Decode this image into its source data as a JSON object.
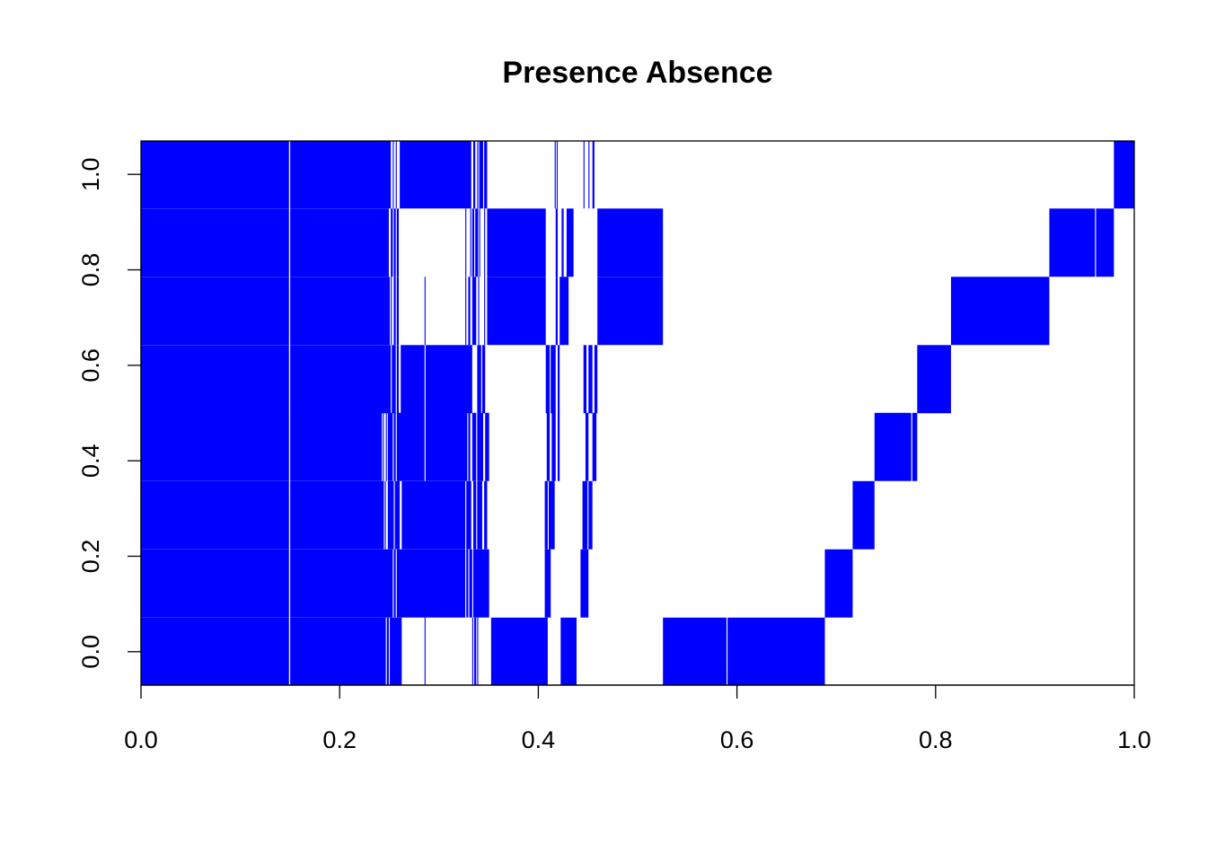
{
  "chart_data": {
    "type": "heatmap",
    "title": "Presence Absence",
    "xlabel": "",
    "ylabel": "",
    "color": "#0000ff",
    "background": "#ffffff",
    "xlim": [
      0,
      1
    ],
    "ylim": [
      -0.07,
      1.07
    ],
    "x_ticks": [
      "0.0",
      "0.2",
      "0.4",
      "0.6",
      "0.8",
      "1.0"
    ],
    "y_ticks": [
      "0.0",
      "0.2",
      "0.4",
      "0.6",
      "0.8",
      "1.0"
    ],
    "rows": [
      {
        "y": 0.0,
        "segments": [
          [
            0.0,
            0.149
          ],
          [
            0.1502,
            0.2465
          ],
          [
            0.2475,
            0.2495
          ],
          [
            0.2505,
            0.2625
          ],
          [
            0.2855,
            0.2865
          ],
          [
            0.3335,
            0.3345
          ],
          [
            0.3355,
            0.3375
          ],
          [
            0.3385,
            0.3395
          ],
          [
            0.3525,
            0.4095
          ],
          [
            0.4225,
            0.4385
          ],
          [
            0.5255,
            0.5895
          ],
          [
            0.5905,
            0.6885
          ]
        ]
      },
      {
        "y": 0.143,
        "segments": [
          [
            0.0,
            0.149
          ],
          [
            0.1502,
            0.2535
          ],
          [
            0.2545,
            0.2565
          ],
          [
            0.2575,
            0.3265
          ],
          [
            0.3275,
            0.3295
          ],
          [
            0.3305,
            0.3335
          ],
          [
            0.3345,
            0.3505
          ],
          [
            0.4065,
            0.4125
          ],
          [
            0.4425,
            0.4505
          ],
          [
            0.6885,
            0.7165
          ]
        ]
      },
      {
        "y": 0.286,
        "segments": [
          [
            0.0,
            0.149
          ],
          [
            0.1502,
            0.2445
          ],
          [
            0.2455,
            0.2465
          ],
          [
            0.2485,
            0.2545
          ],
          [
            0.2555,
            0.2605
          ],
          [
            0.2625,
            0.3265
          ],
          [
            0.3275,
            0.3325
          ],
          [
            0.3345,
            0.3375
          ],
          [
            0.3385,
            0.3435
          ],
          [
            0.3455,
            0.3485
          ],
          [
            0.4065,
            0.4095
          ],
          [
            0.4105,
            0.4165
          ],
          [
            0.4445,
            0.4495
          ],
          [
            0.4505,
            0.4545
          ],
          [
            0.7165,
            0.7385
          ]
        ]
      },
      {
        "y": 0.429,
        "segments": [
          [
            0.0,
            0.149
          ],
          [
            0.1502,
            0.2425
          ],
          [
            0.2435,
            0.2445
          ],
          [
            0.2465,
            0.2475
          ],
          [
            0.2485,
            0.2535
          ],
          [
            0.2545,
            0.2565
          ],
          [
            0.2575,
            0.2855
          ],
          [
            0.2865,
            0.3285
          ],
          [
            0.3295,
            0.3315
          ],
          [
            0.3335,
            0.3375
          ],
          [
            0.3385,
            0.3445
          ],
          [
            0.3465,
            0.3505
          ],
          [
            0.4085,
            0.4115
          ],
          [
            0.4135,
            0.4175
          ],
          [
            0.4195,
            0.4215
          ],
          [
            0.4475,
            0.4505
          ],
          [
            0.4545,
            0.4585
          ],
          [
            0.7385,
            0.7755
          ],
          [
            0.7765,
            0.7815
          ]
        ]
      },
      {
        "y": 0.571,
        "segments": [
          [
            0.0,
            0.149
          ],
          [
            0.1502,
            0.2515
          ],
          [
            0.2525,
            0.2565
          ],
          [
            0.2575,
            0.2595
          ],
          [
            0.2615,
            0.2855
          ],
          [
            0.2865,
            0.3335
          ],
          [
            0.3385,
            0.3425
          ],
          [
            0.3435,
            0.3465
          ],
          [
            0.4075,
            0.4115
          ],
          [
            0.4125,
            0.4175
          ],
          [
            0.4195,
            0.4215
          ],
          [
            0.4455,
            0.4485
          ],
          [
            0.4505,
            0.4545
          ],
          [
            0.4565,
            0.4595
          ],
          [
            0.7815,
            0.8155
          ]
        ]
      },
      {
        "y": 0.714,
        "segments": [
          [
            0.0,
            0.149
          ],
          [
            0.1502,
            0.2505
          ],
          [
            0.2515,
            0.2525
          ],
          [
            0.2545,
            0.2565
          ],
          [
            0.2575,
            0.2595
          ],
          [
            0.2855,
            0.2865
          ],
          [
            0.3265,
            0.3275
          ],
          [
            0.3295,
            0.3315
          ],
          [
            0.3335,
            0.3375
          ],
          [
            0.3395,
            0.3405
          ],
          [
            0.3455,
            0.3465
          ],
          [
            0.3485,
            0.4075
          ],
          [
            0.4175,
            0.4195
          ],
          [
            0.4215,
            0.4305
          ],
          [
            0.4595,
            0.5255
          ],
          [
            0.8155,
            0.9145
          ]
        ]
      },
      {
        "y": 0.857,
        "segments": [
          [
            0.0,
            0.149
          ],
          [
            0.1502,
            0.2495
          ],
          [
            0.2515,
            0.2535
          ],
          [
            0.2545,
            0.2565
          ],
          [
            0.2575,
            0.2595
          ],
          [
            0.3265,
            0.3275
          ],
          [
            0.3315,
            0.3325
          ],
          [
            0.3335,
            0.3355
          ],
          [
            0.3365,
            0.3395
          ],
          [
            0.3405,
            0.3415
          ],
          [
            0.3455,
            0.3465
          ],
          [
            0.3485,
            0.4075
          ],
          [
            0.4175,
            0.4195
          ],
          [
            0.4235,
            0.4255
          ],
          [
            0.4285,
            0.4355
          ],
          [
            0.4595,
            0.5255
          ],
          [
            0.9145,
            0.9605
          ],
          [
            0.9615,
            0.9795
          ]
        ]
      },
      {
        "y": 1.0,
        "segments": [
          [
            0.0,
            0.149
          ],
          [
            0.1502,
            0.2515
          ],
          [
            0.2535,
            0.2545
          ],
          [
            0.2565,
            0.2575
          ],
          [
            0.2605,
            0.3325
          ],
          [
            0.3345,
            0.3365
          ],
          [
            0.3385,
            0.3395
          ],
          [
            0.3405,
            0.3445
          ],
          [
            0.3455,
            0.3485
          ],
          [
            0.4165,
            0.4175
          ],
          [
            0.4185,
            0.4195
          ],
          [
            0.4455,
            0.4465
          ],
          [
            0.4505,
            0.4515
          ],
          [
            0.4545,
            0.4565
          ],
          [
            0.9795,
            1.0
          ]
        ]
      }
    ]
  }
}
